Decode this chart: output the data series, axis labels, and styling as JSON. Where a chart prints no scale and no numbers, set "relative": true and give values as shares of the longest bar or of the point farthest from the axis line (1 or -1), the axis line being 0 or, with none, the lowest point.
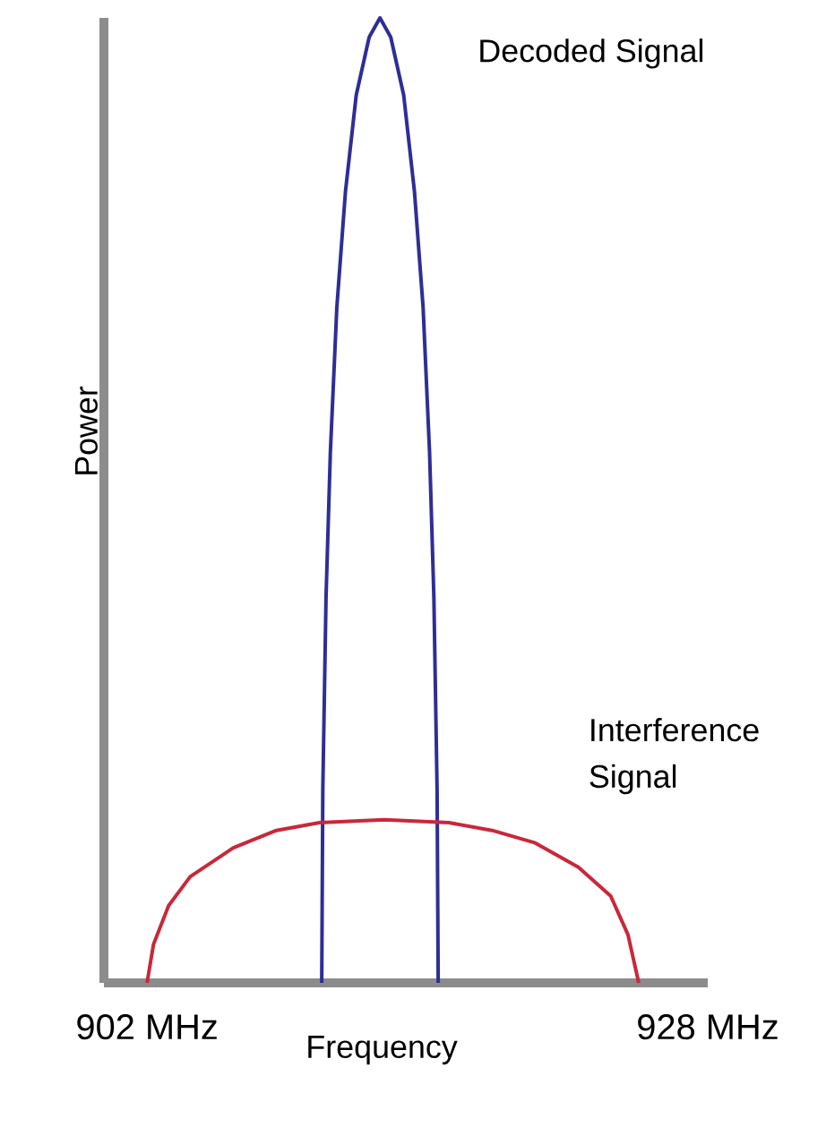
{
  "chart_data": {
    "type": "line",
    "relative": true,
    "xlabel": "Frequency",
    "ylabel": "Power",
    "xlim": [
      900,
      928
    ],
    "xticks": [
      {
        "value": 902,
        "label": "902 MHz"
      },
      {
        "value": 928,
        "label": "928 MHz"
      }
    ],
    "series": [
      {
        "color": "#2e2e96",
        "x": [
          910.1,
          910.15,
          910.3,
          910.5,
          910.8,
          911.2,
          911.7,
          912.3,
          912.8,
          913.3,
          913.9,
          914.4,
          914.8,
          915.1,
          915.3,
          915.45,
          915.5
        ],
        "values": [
          0,
          0.2,
          0.4,
          0.55,
          0.7,
          0.82,
          0.92,
          0.98,
          1,
          0.98,
          0.92,
          0.82,
          0.7,
          0.55,
          0.4,
          0.2,
          0
        ]
      },
      {
        "color": "#c8283a",
        "x": [
          902,
          902.3,
          903,
          904,
          906,
          908,
          910,
          913,
          916,
          918,
          920,
          922,
          923.5,
          924.3,
          924.8
        ],
        "values": [
          0,
          0.04,
          0.08,
          0.11,
          0.14,
          0.158,
          0.166,
          0.169,
          0.166,
          0.158,
          0.145,
          0.12,
          0.09,
          0.05,
          0
        ]
      }
    ],
    "annotations": [
      "Decoded Signal",
      "Interference Signal"
    ]
  }
}
